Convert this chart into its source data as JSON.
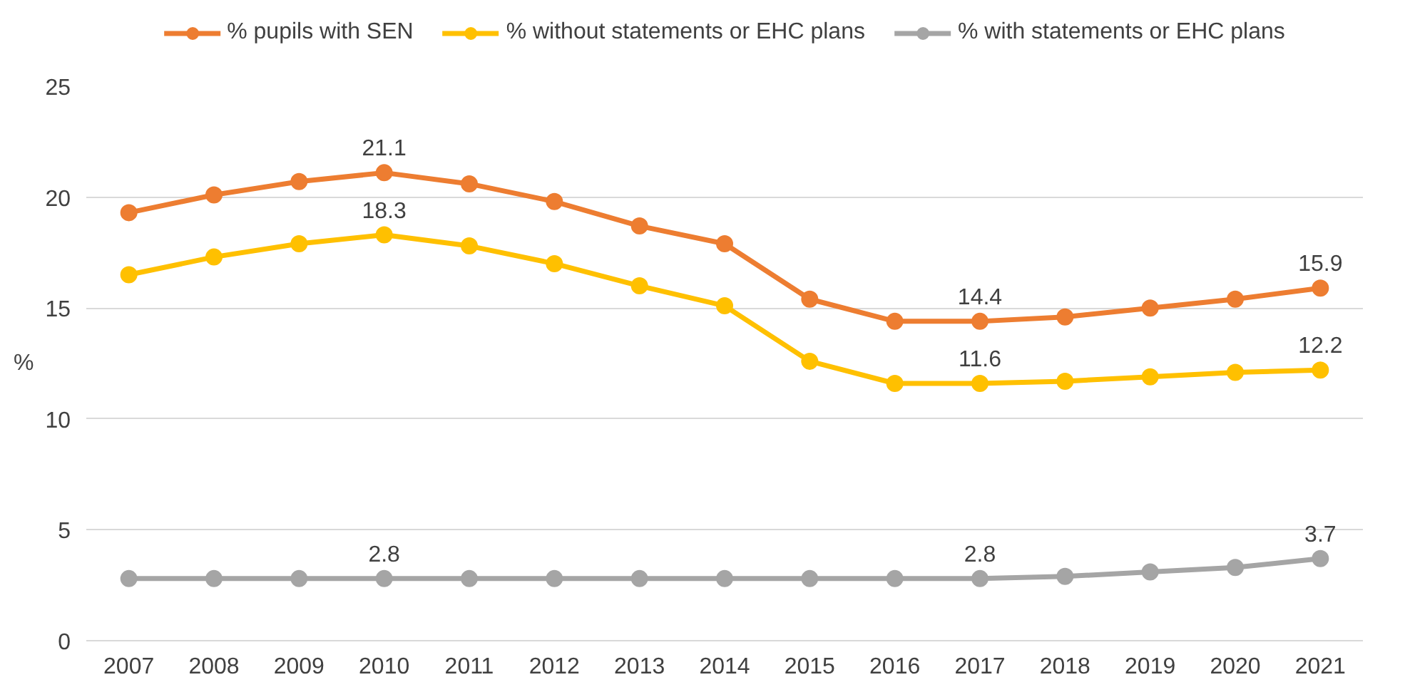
{
  "chart_data": {
    "type": "line",
    "ylabel": "%",
    "categories": [
      "2007",
      "2008",
      "2009",
      "2010",
      "2011",
      "2012",
      "2013",
      "2014",
      "2015",
      "2016",
      "2017",
      "2018",
      "2019",
      "2020",
      "2021"
    ],
    "series": [
      {
        "name": "% pupils with SEN",
        "color": "#ed7d31",
        "values": [
          19.3,
          20.1,
          20.7,
          21.1,
          20.6,
          19.8,
          18.7,
          17.9,
          15.4,
          14.4,
          14.4,
          14.6,
          15.0,
          15.4,
          15.9
        ],
        "value_labels": [
          null,
          null,
          null,
          "21.1",
          null,
          null,
          null,
          null,
          null,
          null,
          "14.4",
          null,
          null,
          null,
          "15.9"
        ]
      },
      {
        "name": "% without statements or EHC plans",
        "color": "#ffc000",
        "values": [
          16.5,
          17.3,
          17.9,
          18.3,
          17.8,
          17.0,
          16.0,
          15.1,
          12.6,
          11.6,
          11.6,
          11.7,
          11.9,
          12.1,
          12.2
        ],
        "value_labels": [
          null,
          null,
          null,
          "18.3",
          null,
          null,
          null,
          null,
          null,
          null,
          "11.6",
          null,
          null,
          null,
          "12.2"
        ]
      },
      {
        "name": "% with statements or EHC plans",
        "color": "#a5a5a5",
        "values": [
          2.8,
          2.8,
          2.8,
          2.8,
          2.8,
          2.8,
          2.8,
          2.8,
          2.8,
          2.8,
          2.8,
          2.9,
          3.1,
          3.3,
          3.7
        ],
        "value_labels": [
          null,
          null,
          null,
          "2.8",
          null,
          null,
          null,
          null,
          null,
          null,
          "2.8",
          null,
          null,
          null,
          "3.7"
        ]
      }
    ],
    "ylim": [
      0,
      25
    ],
    "yticks": [
      0,
      5,
      10,
      15,
      20,
      25
    ],
    "grid": "y",
    "legend": "top",
    "marker": "circle",
    "line_style": "solid"
  }
}
